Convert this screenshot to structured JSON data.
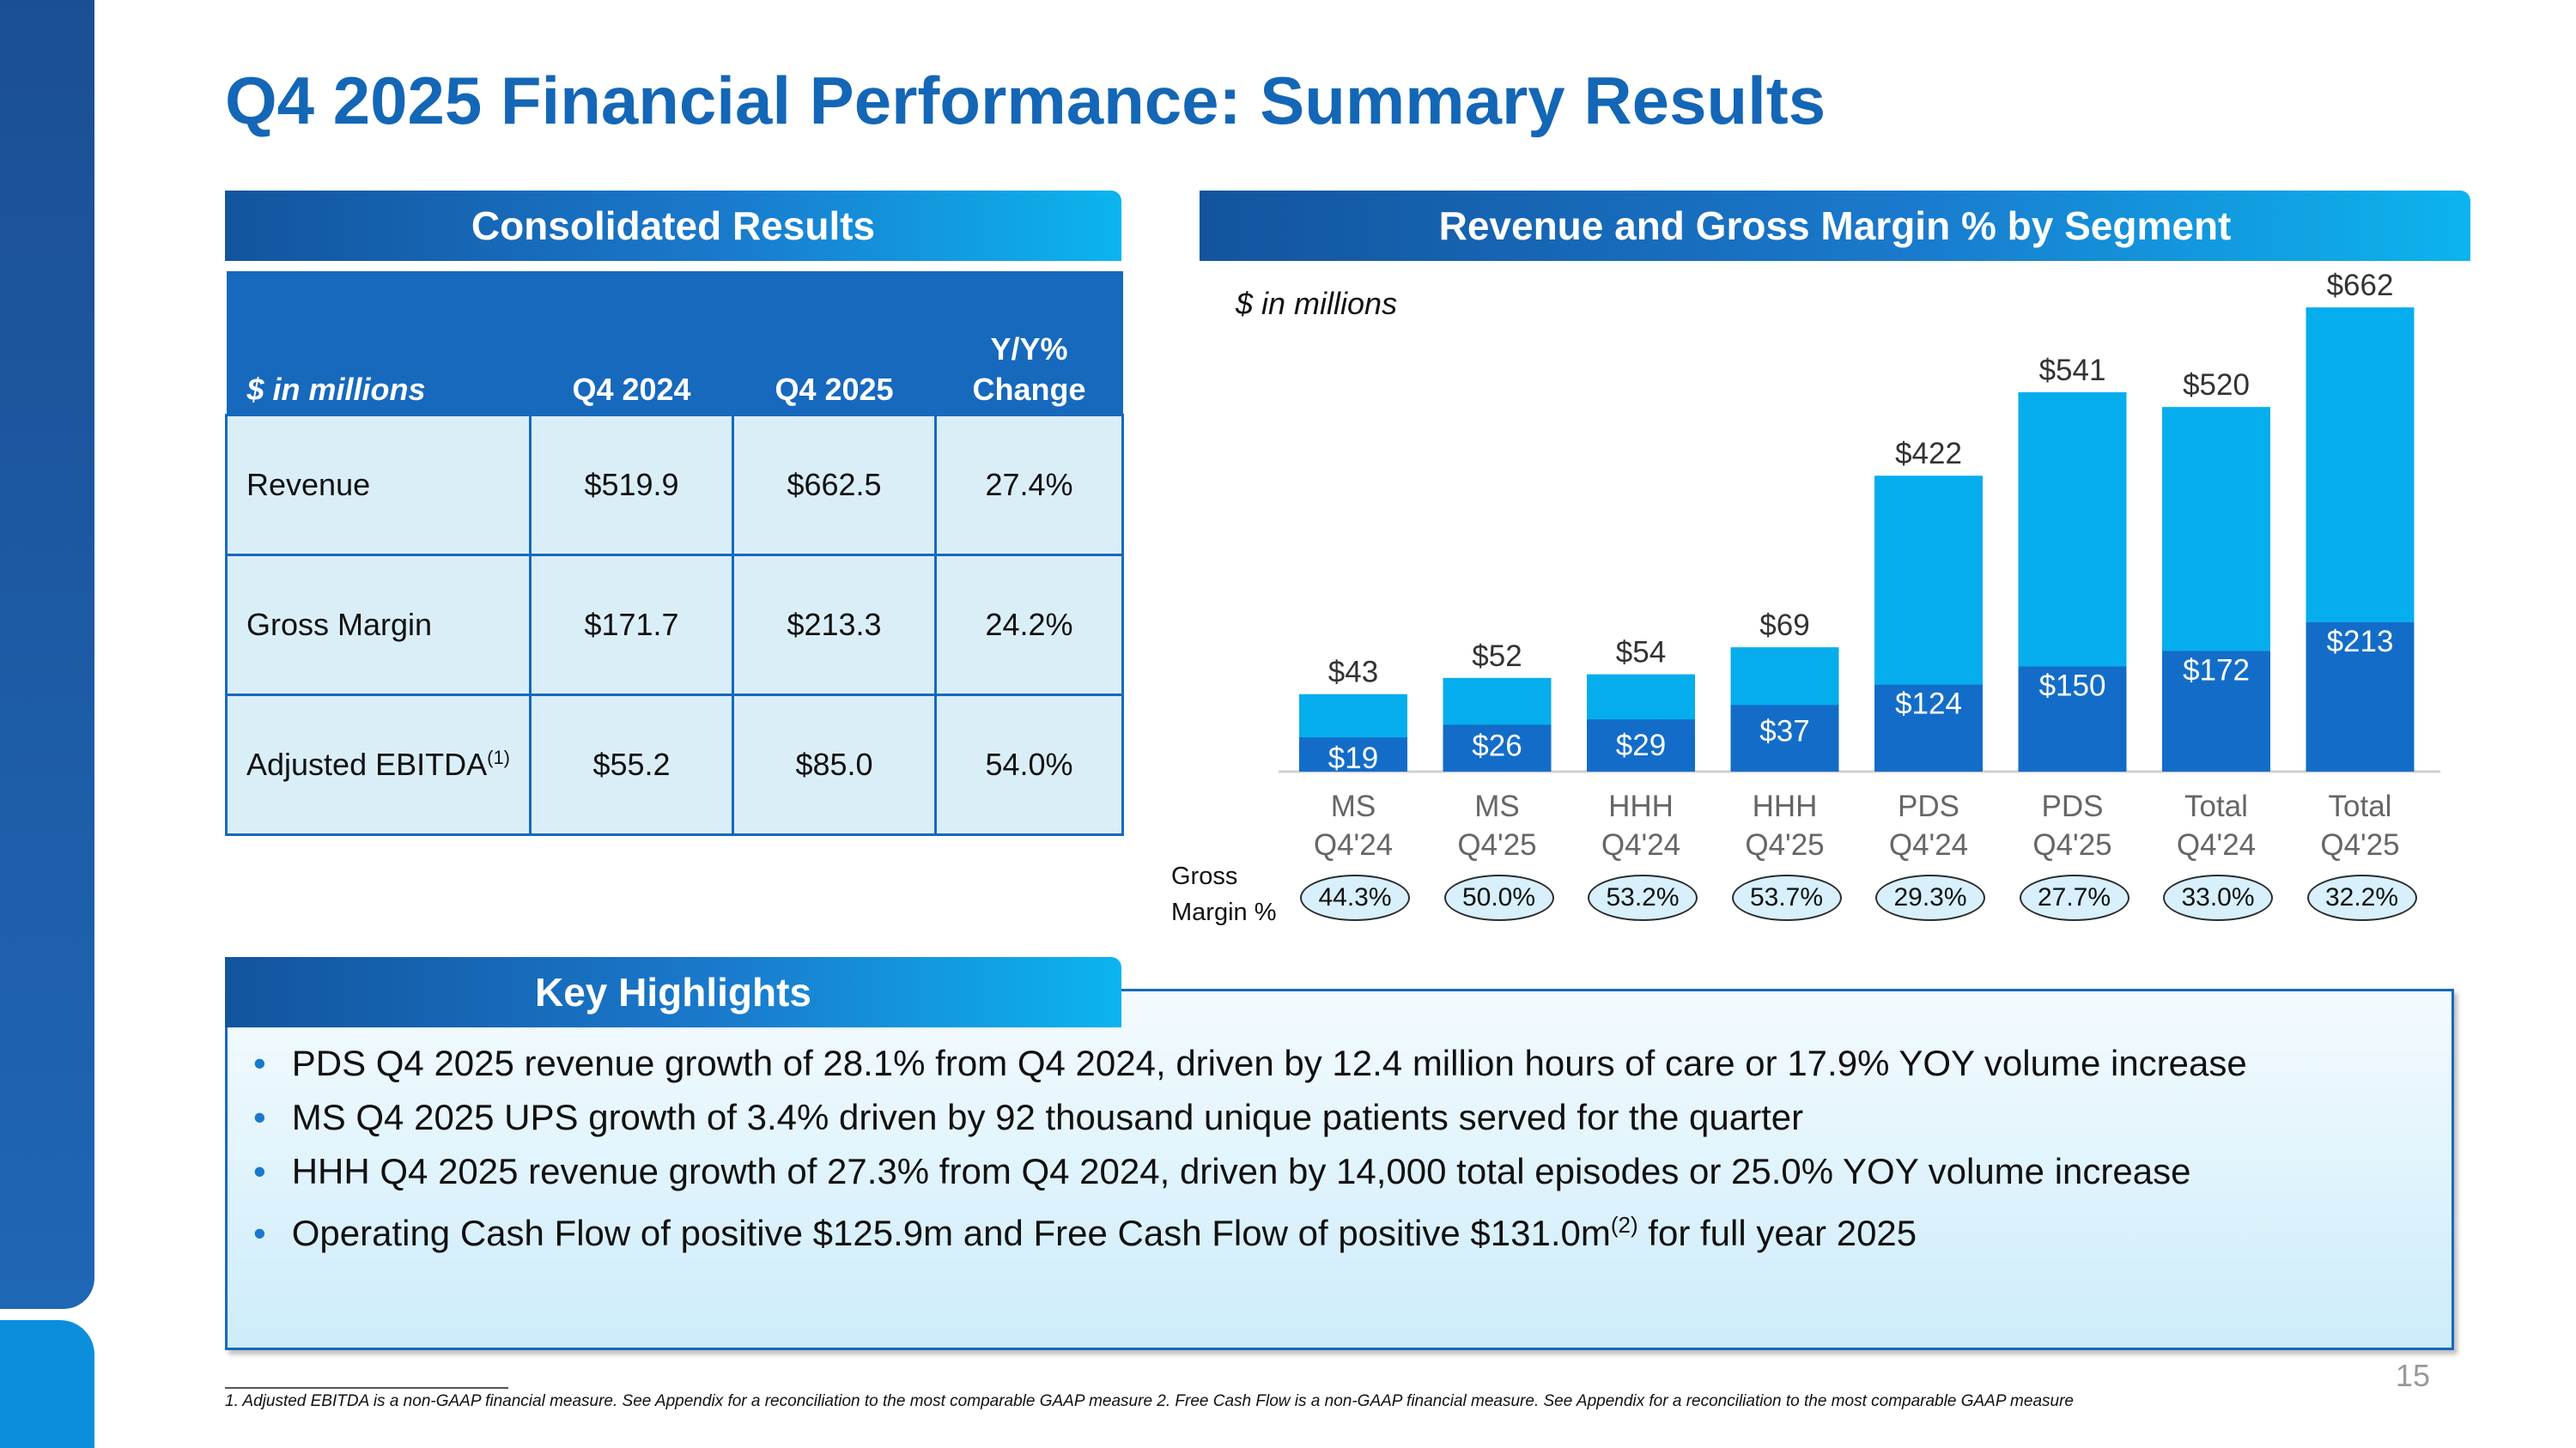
{
  "slide": {
    "title": "Q4 2025 Financial Performance: Summary Results",
    "page_number": "15"
  },
  "consolidated": {
    "banner": "Consolidated Results",
    "headers": [
      "$ in millions",
      "Q4 2024",
      "Q4 2025",
      "Y/Y% Change"
    ],
    "header_change_line1": "Y/Y%",
    "header_change_line2": "Change",
    "rows": [
      {
        "label": "Revenue",
        "sup": "",
        "q4_2024": "$519.9",
        "q4_2025": "$662.5",
        "change": "27.4%"
      },
      {
        "label": "Gross Margin",
        "sup": "",
        "q4_2024": "$171.7",
        "q4_2025": "$213.3",
        "change": "24.2%"
      },
      {
        "label": "Adjusted EBITDA",
        "sup": "(1)",
        "q4_2024": "$55.2",
        "q4_2025": "$85.0",
        "change": "54.0%"
      }
    ]
  },
  "segment": {
    "banner": "Revenue and Gross Margin % by Segment",
    "gm_label_line1": "Gross",
    "gm_label_line2": "Margin %"
  },
  "chart_data": {
    "type": "bar",
    "stacked": true,
    "units_label": "$ in millions",
    "categories": [
      [
        "MS",
        "Q4'24"
      ],
      [
        "MS",
        "Q4'25"
      ],
      [
        "HHH",
        "Q4'24"
      ],
      [
        "HHH",
        "Q4'25"
      ],
      [
        "PDS",
        "Q4'24"
      ],
      [
        "PDS",
        "Q4'25"
      ],
      [
        "Total",
        "Q4'24"
      ],
      [
        "Total",
        "Q4'25"
      ]
    ],
    "series": [
      {
        "name": "Gross Margin",
        "color": "#136dc8",
        "values": [
          19,
          26,
          29,
          37,
          124,
          150,
          172,
          213
        ],
        "labels": [
          "$19",
          "$26",
          "$29",
          "$37",
          "$124",
          "$150",
          "$172",
          "$213"
        ]
      },
      {
        "name": "Revenue",
        "color": "#06aded",
        "values": [
          43,
          52,
          54,
          69,
          422,
          541,
          520,
          662
        ],
        "labels": [
          "$43",
          "$52",
          "$54",
          "$69",
          "$422",
          "$541",
          "$520",
          "$662"
        ]
      }
    ],
    "gross_margin_pct": [
      "44.3%",
      "50.0%",
      "53.2%",
      "53.7%",
      "29.3%",
      "27.7%",
      "33.0%",
      "32.2%"
    ],
    "axis_note": "Segment axis scale differs per segment group (MS/HHH scaled separately from PDS/Total)"
  },
  "highlights": {
    "banner": "Key Highlights",
    "items": [
      {
        "text": "PDS Q4 2025 revenue growth of 28.1% from Q4 2024, driven by 12.4 million hours of care or 17.9% YOY volume increase",
        "sup": "",
        "tail": ""
      },
      {
        "text": "MS Q4 2025 UPS growth of 3.4% driven by 92 thousand unique patients served for the quarter",
        "sup": "",
        "tail": ""
      },
      {
        "text": "HHH Q4 2025 revenue growth of 27.3% from Q4 2024, driven by 14,000 total episodes or 25.0% YOY volume increase",
        "sup": "",
        "tail": ""
      },
      {
        "text": "Operating Cash Flow of positive $125.9m and Free Cash Flow of positive $131.0m",
        "sup": "(2)",
        "tail": " for full year 2025"
      }
    ]
  },
  "footnote": "1. Adjusted EBITDA is a non-GAAP financial measure. See Appendix for a reconciliation to the most comparable GAAP measure 2. Free Cash Flow is a non-GAAP financial measure. See Appendix for a reconciliation to the most comparable GAAP measure",
  "colors": {
    "brand_blue": "#1466b6",
    "dark_bar": "#136dc8",
    "light_bar": "#06aded",
    "table_fill": "#daeef8"
  }
}
